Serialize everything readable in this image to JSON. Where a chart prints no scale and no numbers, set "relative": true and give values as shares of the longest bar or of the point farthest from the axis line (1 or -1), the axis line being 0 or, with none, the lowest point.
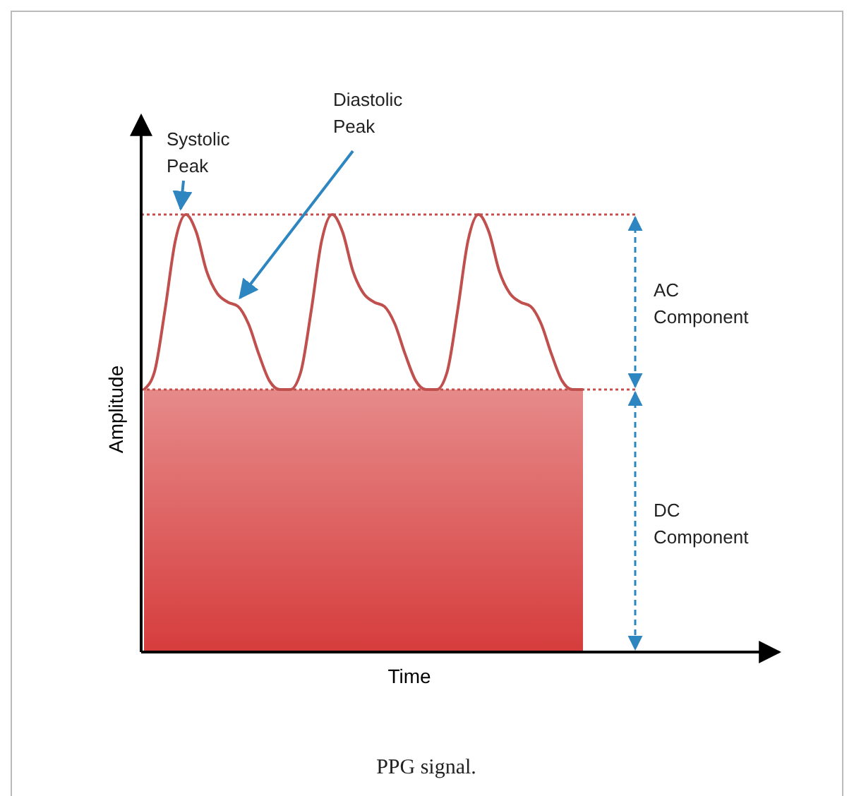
{
  "chart_data": {
    "type": "line",
    "relative": true,
    "xlabel": "Time",
    "ylabel": "Amplitude",
    "categories": [
      null,
      null,
      null,
      null,
      null,
      null,
      null,
      null,
      null,
      null,
      null,
      null,
      null,
      null,
      null,
      null,
      null,
      null,
      null,
      null,
      null,
      null,
      null,
      null,
      null,
      null,
      null,
      null,
      null,
      null,
      null,
      null,
      null,
      null,
      null,
      null,
      null,
      null,
      null,
      null,
      null,
      null,
      null
    ],
    "series": [
      {
        "type": "area",
        "color": "#d63c3c",
        "values": [
          0.6,
          0.6,
          0.6,
          0.6,
          0.6,
          0.6,
          0.6,
          0.6,
          0.6,
          0.6,
          0.6,
          0.6,
          0.6,
          0.6,
          0.6,
          0.6,
          0.6,
          0.6,
          0.6,
          0.6,
          0.6,
          0.6,
          0.6,
          0.6,
          0.6,
          0.6,
          0.6,
          0.6,
          0.6,
          0.6,
          0.6,
          0.6,
          0.6,
          0.6,
          0.6,
          0.6,
          0.6,
          0.6,
          0.6,
          0.6,
          0.6,
          0.6,
          0.6
        ]
      },
      {
        "color": "#c0504d",
        "values": [
          0.6,
          0.64,
          0.78,
          0.94,
          1.0,
          0.96,
          0.87,
          0.82,
          0.8,
          0.79,
          0.75,
          0.68,
          0.62,
          0.6,
          0.6,
          0.64,
          0.78,
          0.94,
          1.0,
          0.96,
          0.87,
          0.82,
          0.8,
          0.79,
          0.75,
          0.68,
          0.62,
          0.6,
          0.6,
          0.64,
          0.78,
          0.94,
          1.0,
          0.96,
          0.87,
          0.82,
          0.8,
          0.79,
          0.75,
          0.68,
          0.62,
          0.6,
          0.6
        ]
      }
    ],
    "ref_lines": [
      {
        "axis": "y",
        "value": 1,
        "color": "#c0504d",
        "line_style": "dotted"
      },
      {
        "axis": "y",
        "value": 0.6,
        "color": "#c0504d",
        "line_style": "dotted"
      }
    ],
    "annotations": [
      "Systolic Peak",
      "Diastolic Peak",
      "AC Component",
      "DC Component",
      "PPG signal."
    ]
  }
}
